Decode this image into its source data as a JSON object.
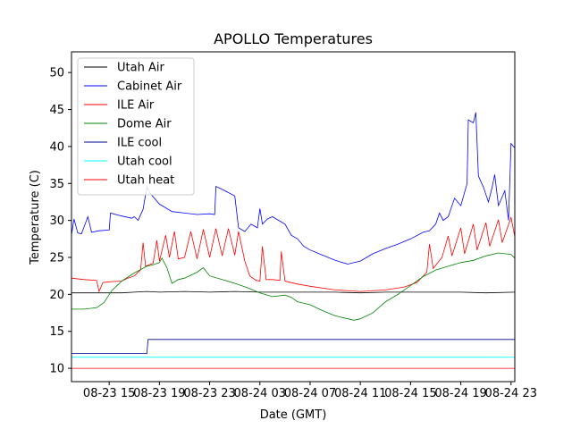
{
  "chart_data": {
    "type": "line",
    "title": "APOLLO Temperatures",
    "xlabel": "Date (GMT)",
    "ylabel": "Temperature (C)",
    "xlim": [
      12,
      47.3
    ],
    "ylim": [
      8.2,
      52.8
    ],
    "grid": false,
    "legend_position": "top-left",
    "x_unit": "hours since 08-23 00:00 GMT",
    "x_ticks": [
      {
        "value": 15,
        "label": "08-23 15"
      },
      {
        "value": 19,
        "label": "08-23 19"
      },
      {
        "value": 23,
        "label": "08-23 23"
      },
      {
        "value": 27,
        "label": "08-24 03"
      },
      {
        "value": 31,
        "label": "08-24 07"
      },
      {
        "value": 35,
        "label": "08-24 11"
      },
      {
        "value": 39,
        "label": "08-24 15"
      },
      {
        "value": 43,
        "label": "08-24 19"
      },
      {
        "value": 47,
        "label": "08-24 23"
      }
    ],
    "y_ticks": [
      {
        "value": 10,
        "label": "10"
      },
      {
        "value": 15,
        "label": "15"
      },
      {
        "value": 20,
        "label": "20"
      },
      {
        "value": 25,
        "label": "25"
      },
      {
        "value": 30,
        "label": "30"
      },
      {
        "value": 35,
        "label": "35"
      },
      {
        "value": 40,
        "label": "40"
      },
      {
        "value": 45,
        "label": "45"
      },
      {
        "value": 50,
        "label": "50"
      }
    ],
    "series": [
      {
        "name": "Utah Air",
        "color": "#000000",
        "points": [
          [
            12.0,
            20.2
          ],
          [
            14.0,
            20.2
          ],
          [
            16.0,
            20.2
          ],
          [
            17.0,
            20.3
          ],
          [
            18.0,
            20.4
          ],
          [
            19.0,
            20.3
          ],
          [
            21.0,
            20.4
          ],
          [
            23.0,
            20.3
          ],
          [
            25.0,
            20.4
          ],
          [
            27.0,
            20.3
          ],
          [
            29.0,
            20.3
          ],
          [
            31.0,
            20.3
          ],
          [
            33.0,
            20.3
          ],
          [
            35.0,
            20.2
          ],
          [
            37.0,
            20.3
          ],
          [
            39.0,
            20.3
          ],
          [
            41.0,
            20.3
          ],
          [
            43.0,
            20.3
          ],
          [
            45.0,
            20.2
          ],
          [
            47.3,
            20.3
          ]
        ]
      },
      {
        "name": "Cabinet Air",
        "color": "#0000ff",
        "points": [
          [
            12.0,
            28.0
          ],
          [
            12.2,
            30.2
          ],
          [
            12.5,
            28.3
          ],
          [
            12.8,
            28.2
          ],
          [
            13.3,
            30.5
          ],
          [
            13.6,
            28.4
          ],
          [
            14.2,
            28.6
          ],
          [
            15.0,
            28.7
          ],
          [
            15.1,
            31.0
          ],
          [
            16.0,
            30.6
          ],
          [
            16.8,
            30.3
          ],
          [
            17.0,
            30.5
          ],
          [
            17.3,
            30.0
          ],
          [
            17.7,
            31.5
          ],
          [
            18.0,
            34.5
          ],
          [
            18.3,
            33.6
          ],
          [
            19.0,
            32.2
          ],
          [
            20.0,
            31.2
          ],
          [
            21.0,
            31.0
          ],
          [
            22.0,
            30.8
          ],
          [
            23.0,
            30.9
          ],
          [
            23.4,
            30.8
          ],
          [
            23.5,
            34.6
          ],
          [
            24.0,
            34.2
          ],
          [
            25.0,
            33.3
          ],
          [
            25.3,
            29.0
          ],
          [
            25.8,
            28.5
          ],
          [
            26.3,
            29.5
          ],
          [
            26.8,
            29.0
          ],
          [
            27.0,
            31.6
          ],
          [
            27.2,
            29.5
          ],
          [
            27.6,
            30.2
          ],
          [
            28.0,
            30.5
          ],
          [
            29.0,
            29.5
          ],
          [
            29.5,
            28.0
          ],
          [
            30.0,
            27.5
          ],
          [
            30.5,
            26.5
          ],
          [
            31.0,
            26.0
          ],
          [
            32.0,
            25.3
          ],
          [
            33.0,
            24.6
          ],
          [
            34.0,
            24.1
          ],
          [
            35.0,
            24.5
          ],
          [
            36.0,
            25.5
          ],
          [
            37.0,
            26.2
          ],
          [
            38.0,
            26.8
          ],
          [
            39.0,
            27.5
          ],
          [
            40.0,
            28.4
          ],
          [
            40.5,
            28.6
          ],
          [
            41.0,
            29.5
          ],
          [
            41.3,
            31.0
          ],
          [
            41.6,
            30.0
          ],
          [
            42.0,
            30.5
          ],
          [
            42.5,
            33.0
          ],
          [
            43.0,
            32.0
          ],
          [
            43.5,
            35.0
          ],
          [
            43.6,
            43.6
          ],
          [
            44.0,
            43.2
          ],
          [
            44.2,
            44.6
          ],
          [
            44.4,
            36.0
          ],
          [
            44.8,
            34.5
          ],
          [
            45.2,
            32.5
          ],
          [
            45.5,
            34.5
          ],
          [
            45.7,
            36.2
          ],
          [
            46.0,
            32.0
          ],
          [
            46.5,
            34.0
          ],
          [
            46.8,
            30.0
          ],
          [
            47.0,
            40.4
          ],
          [
            47.3,
            39.8
          ]
        ]
      },
      {
        "name": "ILE Air",
        "color": "#ff0000",
        "points": [
          [
            12.0,
            22.2
          ],
          [
            13.0,
            22.0
          ],
          [
            14.0,
            21.9
          ],
          [
            14.2,
            20.4
          ],
          [
            14.5,
            21.6
          ],
          [
            15.0,
            21.7
          ],
          [
            16.0,
            21.8
          ],
          [
            16.5,
            22.2
          ],
          [
            17.0,
            22.5
          ],
          [
            17.5,
            23.3
          ],
          [
            17.7,
            27.0
          ],
          [
            17.9,
            23.8
          ],
          [
            18.5,
            24.2
          ],
          [
            18.8,
            27.3
          ],
          [
            19.0,
            24.5
          ],
          [
            19.5,
            28.0
          ],
          [
            19.8,
            25.0
          ],
          [
            20.2,
            28.5
          ],
          [
            20.5,
            24.8
          ],
          [
            21.0,
            25.0
          ],
          [
            21.5,
            28.5
          ],
          [
            22.0,
            24.8
          ],
          [
            22.5,
            28.8
          ],
          [
            23.0,
            25.0
          ],
          [
            23.5,
            28.9
          ],
          [
            24.0,
            25.2
          ],
          [
            24.5,
            28.9
          ],
          [
            25.0,
            25.3
          ],
          [
            25.3,
            28.5
          ],
          [
            25.8,
            24.5
          ],
          [
            26.2,
            22.5
          ],
          [
            26.7,
            21.9
          ],
          [
            27.0,
            21.8
          ],
          [
            27.2,
            26.5
          ],
          [
            27.5,
            22.0
          ],
          [
            28.0,
            22.0
          ],
          [
            28.6,
            21.9
          ],
          [
            28.7,
            25.8
          ],
          [
            29.0,
            21.8
          ],
          [
            30.0,
            21.4
          ],
          [
            31.0,
            21.1
          ],
          [
            33.0,
            20.6
          ],
          [
            35.0,
            20.4
          ],
          [
            37.0,
            20.6
          ],
          [
            38.5,
            21.0
          ],
          [
            39.5,
            21.6
          ],
          [
            40.3,
            23.0
          ],
          [
            40.5,
            26.8
          ],
          [
            40.8,
            23.5
          ],
          [
            41.5,
            25.0
          ],
          [
            42.0,
            27.9
          ],
          [
            42.3,
            25.2
          ],
          [
            43.0,
            29.0
          ],
          [
            43.3,
            25.5
          ],
          [
            44.0,
            29.5
          ],
          [
            44.3,
            26.0
          ],
          [
            45.0,
            29.7
          ],
          [
            45.3,
            26.5
          ],
          [
            46.0,
            30.1
          ],
          [
            46.3,
            27.0
          ],
          [
            47.0,
            30.4
          ],
          [
            47.3,
            27.8
          ]
        ]
      },
      {
        "name": "Dome Air",
        "color": "#008000",
        "points": [
          [
            12.0,
            18.0
          ],
          [
            13.0,
            18.0
          ],
          [
            14.0,
            18.2
          ],
          [
            14.6,
            18.9
          ],
          [
            15.2,
            20.5
          ],
          [
            16.0,
            21.8
          ],
          [
            17.0,
            22.9
          ],
          [
            18.0,
            23.8
          ],
          [
            18.5,
            24.0
          ],
          [
            19.0,
            24.3
          ],
          [
            19.2,
            24.9
          ],
          [
            19.6,
            23.6
          ],
          [
            20.0,
            21.5
          ],
          [
            20.5,
            22.0
          ],
          [
            21.0,
            22.2
          ],
          [
            22.0,
            23.0
          ],
          [
            22.5,
            23.6
          ],
          [
            23.0,
            22.5
          ],
          [
            24.0,
            22.0
          ],
          [
            25.0,
            21.5
          ],
          [
            26.0,
            20.9
          ],
          [
            27.0,
            20.2
          ],
          [
            28.0,
            19.7
          ],
          [
            29.0,
            19.9
          ],
          [
            29.5,
            19.6
          ],
          [
            30.0,
            19.0
          ],
          [
            31.0,
            18.6
          ],
          [
            32.0,
            17.8
          ],
          [
            33.0,
            17.1
          ],
          [
            34.0,
            16.7
          ],
          [
            34.5,
            16.5
          ],
          [
            35.0,
            16.7
          ],
          [
            36.0,
            17.5
          ],
          [
            37.0,
            19.0
          ],
          [
            38.0,
            20.0
          ],
          [
            39.0,
            21.2
          ],
          [
            40.0,
            22.4
          ],
          [
            41.0,
            23.3
          ],
          [
            42.0,
            23.8
          ],
          [
            43.0,
            24.3
          ],
          [
            44.0,
            24.6
          ],
          [
            45.0,
            25.2
          ],
          [
            46.0,
            25.6
          ],
          [
            47.0,
            25.4
          ],
          [
            47.3,
            24.9
          ]
        ]
      },
      {
        "name": "ILE cool",
        "color": "#00008b",
        "points": [
          [
            12.0,
            12.0
          ],
          [
            18.0,
            12.0
          ],
          [
            18.1,
            13.9
          ],
          [
            47.3,
            13.9
          ]
        ]
      },
      {
        "name": "Utah cool",
        "color": "#00ffff",
        "points": [
          [
            12.0,
            11.5
          ],
          [
            47.3,
            11.5
          ]
        ]
      },
      {
        "name": "Utah heat",
        "color": "#ff0000",
        "points": [
          [
            12.0,
            10.0
          ],
          [
            47.3,
            10.0
          ]
        ]
      }
    ]
  }
}
